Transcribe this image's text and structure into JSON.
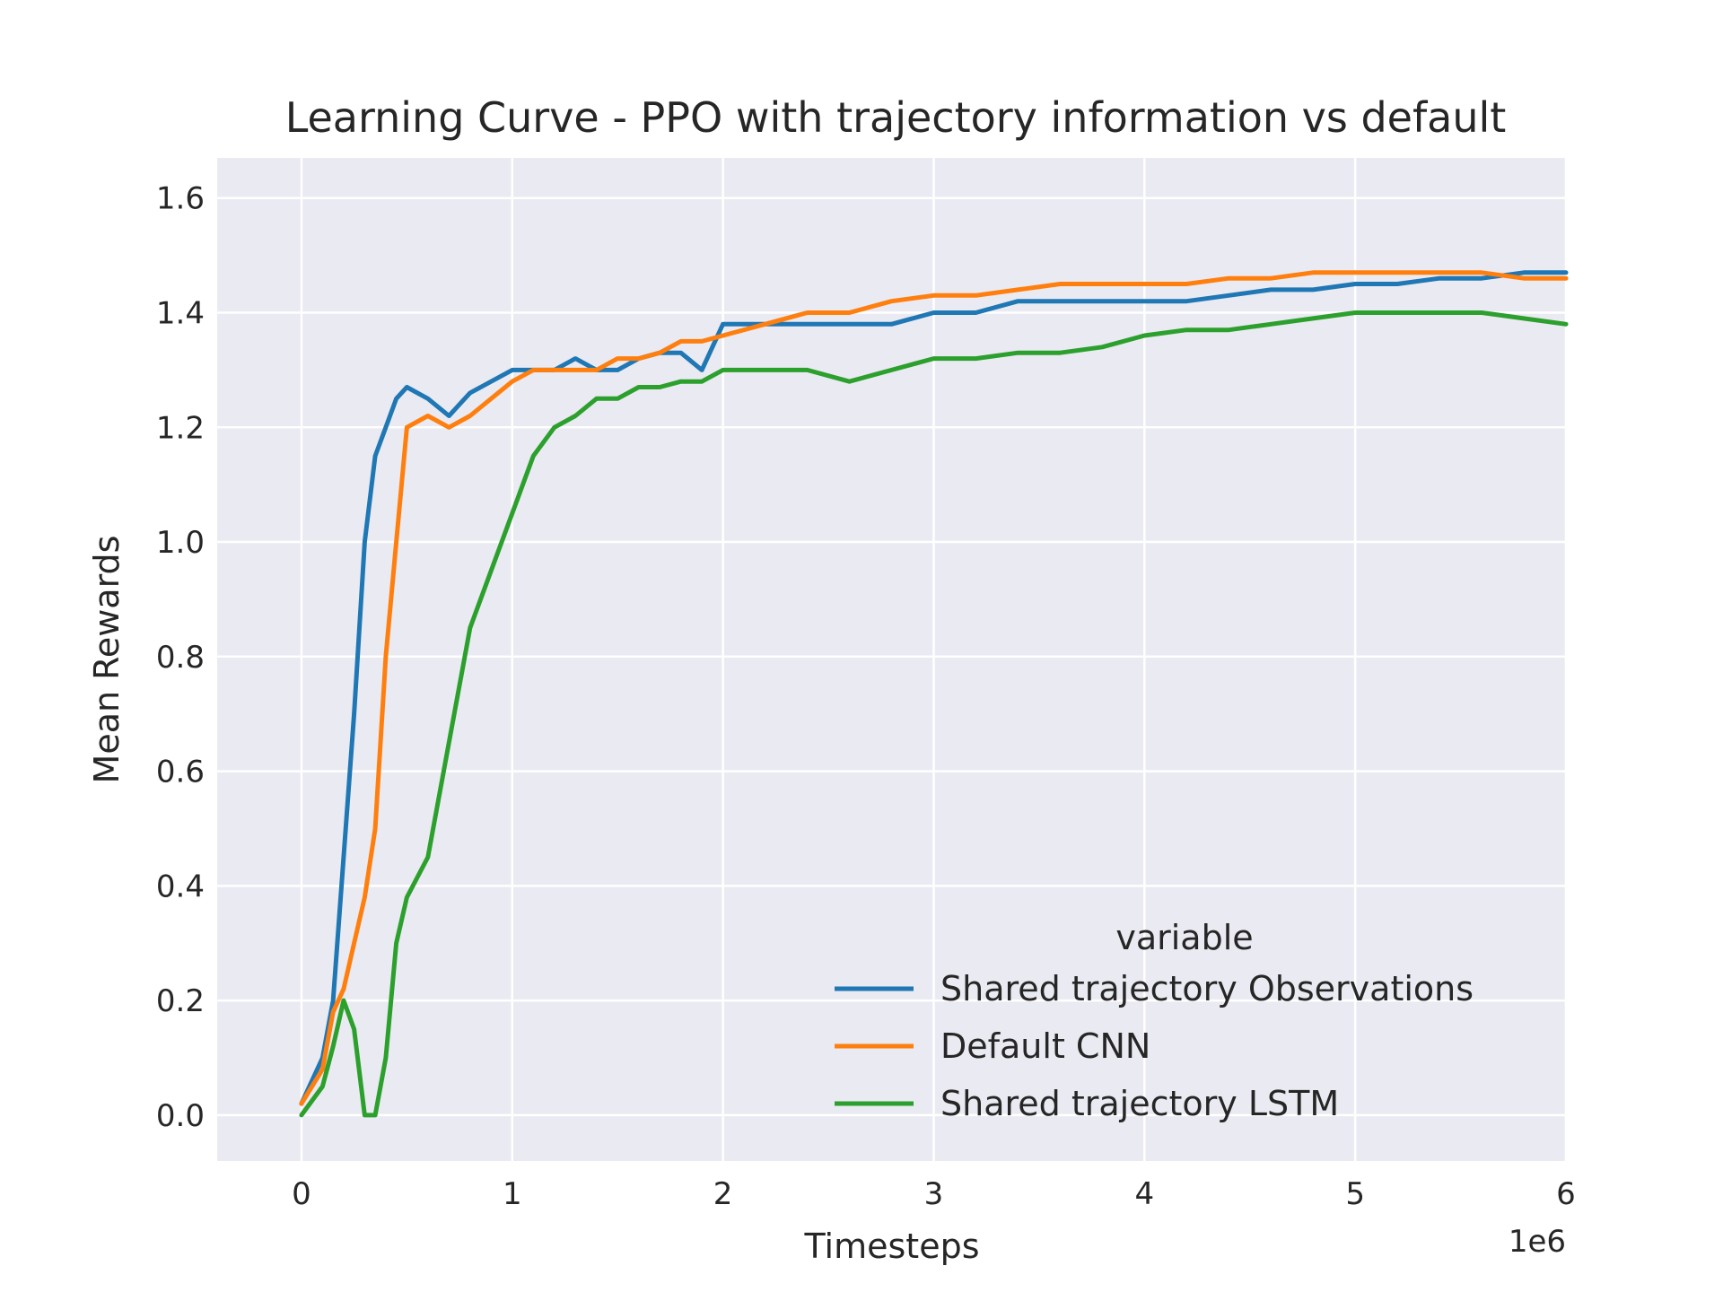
{
  "chart_data": {
    "type": "line",
    "title": "Learning Curve - PPO with trajectory information vs default",
    "xlabel": "Timesteps",
    "ylabel": "Mean Rewards",
    "x_offset_label": "1e6",
    "xlim": [
      -0.4,
      6.0
    ],
    "ylim": [
      -0.08,
      1.67
    ],
    "x_ticks": [
      0,
      1,
      2,
      3,
      4,
      5,
      6
    ],
    "x_tick_labels": [
      "0",
      "1",
      "2",
      "3",
      "4",
      "5",
      "6"
    ],
    "y_ticks": [
      0.0,
      0.2,
      0.4,
      0.6,
      0.8,
      1.0,
      1.2,
      1.4,
      1.6
    ],
    "y_tick_labels": [
      "0.0",
      "0.2",
      "0.4",
      "0.6",
      "0.8",
      "1.0",
      "1.2",
      "1.4",
      "1.6"
    ],
    "grid": true,
    "background": "#eaeaf2",
    "legend": {
      "title": "variable",
      "placement": "lower-right"
    },
    "series": [
      {
        "name": "Shared trajectory Observations",
        "color": "#1f77b4",
        "x": [
          0,
          0.1,
          0.15,
          0.2,
          0.25,
          0.3,
          0.35,
          0.4,
          0.45,
          0.5,
          0.6,
          0.7,
          0.8,
          0.9,
          1.0,
          1.1,
          1.2,
          1.3,
          1.4,
          1.5,
          1.6,
          1.7,
          1.8,
          1.9,
          2.0,
          2.2,
          2.4,
          2.6,
          2.8,
          3.0,
          3.2,
          3.4,
          3.6,
          3.8,
          4.0,
          4.2,
          4.4,
          4.6,
          4.8,
          5.0,
          5.2,
          5.4,
          5.6,
          5.8,
          6.0
        ],
        "y": [
          0.02,
          0.1,
          0.2,
          0.45,
          0.7,
          1.0,
          1.15,
          1.2,
          1.25,
          1.27,
          1.25,
          1.22,
          1.26,
          1.28,
          1.3,
          1.3,
          1.3,
          1.32,
          1.3,
          1.3,
          1.32,
          1.33,
          1.33,
          1.3,
          1.38,
          1.38,
          1.38,
          1.38,
          1.38,
          1.4,
          1.4,
          1.42,
          1.42,
          1.42,
          1.42,
          1.42,
          1.43,
          1.44,
          1.44,
          1.45,
          1.45,
          1.46,
          1.46,
          1.47,
          1.47
        ]
      },
      {
        "name": "Default CNN",
        "color": "#ff7f0e",
        "x": [
          0,
          0.1,
          0.15,
          0.2,
          0.25,
          0.3,
          0.35,
          0.4,
          0.45,
          0.5,
          0.6,
          0.7,
          0.8,
          0.9,
          1.0,
          1.1,
          1.2,
          1.3,
          1.4,
          1.5,
          1.6,
          1.7,
          1.8,
          1.9,
          2.0,
          2.2,
          2.4,
          2.6,
          2.8,
          3.0,
          3.2,
          3.4,
          3.6,
          3.8,
          4.0,
          4.2,
          4.4,
          4.6,
          4.8,
          5.0,
          5.2,
          5.4,
          5.6,
          5.8,
          6.0
        ],
        "y": [
          0.02,
          0.08,
          0.18,
          0.22,
          0.3,
          0.38,
          0.5,
          0.8,
          1.0,
          1.2,
          1.22,
          1.2,
          1.22,
          1.25,
          1.28,
          1.3,
          1.3,
          1.3,
          1.3,
          1.32,
          1.32,
          1.33,
          1.35,
          1.35,
          1.36,
          1.38,
          1.4,
          1.4,
          1.42,
          1.43,
          1.43,
          1.44,
          1.45,
          1.45,
          1.45,
          1.45,
          1.46,
          1.46,
          1.47,
          1.47,
          1.47,
          1.47,
          1.47,
          1.46,
          1.46
        ]
      },
      {
        "name": "Shared trajectory LSTM",
        "color": "#2ca02c",
        "x": [
          0,
          0.1,
          0.15,
          0.2,
          0.25,
          0.3,
          0.35,
          0.4,
          0.45,
          0.5,
          0.6,
          0.7,
          0.8,
          0.9,
          1.0,
          1.1,
          1.2,
          1.3,
          1.4,
          1.5,
          1.6,
          1.7,
          1.8,
          1.9,
          2.0,
          2.2,
          2.4,
          2.6,
          2.8,
          3.0,
          3.2,
          3.4,
          3.6,
          3.8,
          4.0,
          4.2,
          4.4,
          4.6,
          4.8,
          5.0,
          5.2,
          5.4,
          5.6,
          5.8,
          6.0
        ],
        "y": [
          0.0,
          0.05,
          0.12,
          0.2,
          0.15,
          0.0,
          0.0,
          0.1,
          0.3,
          0.38,
          0.45,
          0.65,
          0.85,
          0.95,
          1.05,
          1.15,
          1.2,
          1.22,
          1.25,
          1.25,
          1.27,
          1.27,
          1.28,
          1.28,
          1.3,
          1.3,
          1.3,
          1.28,
          1.3,
          1.32,
          1.32,
          1.33,
          1.33,
          1.34,
          1.36,
          1.37,
          1.37,
          1.38,
          1.39,
          1.4,
          1.4,
          1.4,
          1.4,
          1.39,
          1.38
        ]
      }
    ]
  }
}
